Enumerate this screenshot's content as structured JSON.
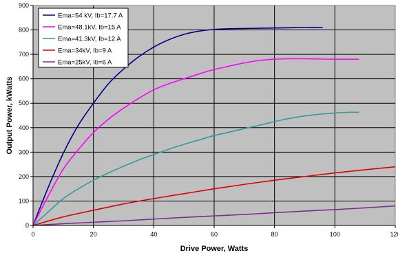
{
  "chart_data": {
    "type": "line",
    "title": "",
    "xlabel": "Drive Power, Watts",
    "ylabel": "Output Power, kWatts",
    "xlim": [
      0,
      120
    ],
    "ylim": [
      0,
      900
    ],
    "xticks": [
      0,
      20,
      40,
      60,
      80,
      100,
      120
    ],
    "yticks": [
      0,
      100,
      200,
      300,
      400,
      500,
      600,
      700,
      800,
      900
    ],
    "xtick_labels": [
      "0",
      "20",
      "40",
      "60",
      "80",
      "100",
      "120"
    ],
    "ytick_labels": [
      "0",
      "100",
      "200",
      "300",
      "400",
      "500",
      "600",
      "700",
      "800",
      "900"
    ],
    "grid": true,
    "plot_background": "#c0c0c0",
    "legend_position": "top-left",
    "series": [
      {
        "name": "Ema=54 kV, Ib=17.7 A",
        "color": "#000080",
        "x": [
          0,
          5,
          10,
          15,
          20,
          25,
          30,
          35,
          40,
          45,
          50,
          55,
          60,
          65,
          70,
          75,
          80,
          85,
          90,
          96
        ],
        "y": [
          0,
          155,
          295,
          410,
          500,
          580,
          640,
          690,
          730,
          760,
          782,
          795,
          802,
          805,
          806,
          807,
          808,
          809,
          810,
          810
        ]
      },
      {
        "name": "Ema=48.1kV, Ib=15 A",
        "color": "#ff00ff",
        "x": [
          0,
          5,
          10,
          15,
          20,
          25,
          30,
          35,
          40,
          45,
          50,
          55,
          60,
          65,
          70,
          75,
          80,
          85,
          90,
          95,
          100,
          108
        ],
        "y": [
          0,
          120,
          230,
          310,
          380,
          435,
          480,
          520,
          555,
          580,
          600,
          620,
          638,
          652,
          665,
          675,
          680,
          682,
          682,
          681,
          680,
          680
        ]
      },
      {
        "name": "Ema=41.3kV, Ib=12 A",
        "color": "#339999",
        "x": [
          0,
          5,
          10,
          15,
          20,
          25,
          30,
          35,
          40,
          45,
          50,
          55,
          60,
          65,
          70,
          75,
          80,
          85,
          90,
          95,
          100,
          105,
          108
        ],
        "y": [
          0,
          55,
          110,
          150,
          185,
          215,
          242,
          268,
          290,
          312,
          332,
          350,
          368,
          382,
          396,
          410,
          425,
          438,
          448,
          455,
          460,
          463,
          463
        ]
      },
      {
        "name": "Ema=34kV, Ib=9 A",
        "color": "#dd0000",
        "x": [
          0,
          10,
          20,
          30,
          40,
          50,
          60,
          70,
          80,
          90,
          100,
          110,
          120
        ],
        "y": [
          0,
          35,
          62,
          88,
          110,
          130,
          150,
          168,
          185,
          200,
          215,
          228,
          240
        ]
      },
      {
        "name": "Ema=25kV, Ib=6 A",
        "color": "#7b2d8b",
        "x": [
          0,
          10,
          20,
          30,
          40,
          50,
          60,
          70,
          80,
          90,
          100,
          110,
          120
        ],
        "y": [
          0,
          7,
          13,
          19,
          26,
          33,
          39,
          45,
          52,
          59,
          65,
          72,
          80
        ]
      }
    ]
  }
}
